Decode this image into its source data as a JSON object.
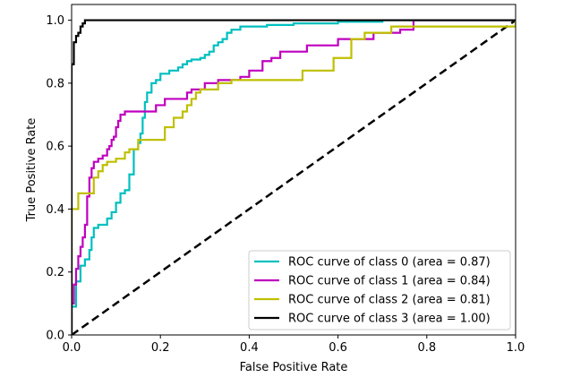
{
  "chart_data": {
    "type": "line",
    "title": "",
    "xlabel": "False Positive Rate",
    "ylabel": "True Positive Rate",
    "xlim": [
      0.0,
      1.0
    ],
    "ylim": [
      0.0,
      1.05
    ],
    "xticks": [
      "0.0",
      "0.2",
      "0.4",
      "0.6",
      "0.8",
      "1.0"
    ],
    "yticks": [
      "0.0",
      "0.2",
      "0.4",
      "0.6",
      "0.8",
      "1.0"
    ],
    "grid": false,
    "legend_position": "lower-right",
    "series": [
      {
        "name": "ROC curve of class 0 (area = 0.87)",
        "color": "#00bfbf",
        "points": [
          [
            0.0,
            0.0
          ],
          [
            0.0,
            0.09
          ],
          [
            0.01,
            0.09
          ],
          [
            0.01,
            0.17
          ],
          [
            0.02,
            0.17
          ],
          [
            0.02,
            0.22
          ],
          [
            0.03,
            0.22
          ],
          [
            0.03,
            0.24
          ],
          [
            0.04,
            0.24
          ],
          [
            0.04,
            0.27
          ],
          [
            0.045,
            0.27
          ],
          [
            0.045,
            0.31
          ],
          [
            0.05,
            0.31
          ],
          [
            0.05,
            0.34
          ],
          [
            0.06,
            0.34
          ],
          [
            0.06,
            0.35
          ],
          [
            0.08,
            0.35
          ],
          [
            0.08,
            0.37
          ],
          [
            0.09,
            0.37
          ],
          [
            0.09,
            0.39
          ],
          [
            0.1,
            0.39
          ],
          [
            0.1,
            0.42
          ],
          [
            0.11,
            0.42
          ],
          [
            0.11,
            0.45
          ],
          [
            0.12,
            0.45
          ],
          [
            0.12,
            0.46
          ],
          [
            0.13,
            0.46
          ],
          [
            0.13,
            0.51
          ],
          [
            0.14,
            0.51
          ],
          [
            0.14,
            0.59
          ],
          [
            0.15,
            0.59
          ],
          [
            0.15,
            0.61
          ],
          [
            0.155,
            0.61
          ],
          [
            0.155,
            0.64
          ],
          [
            0.16,
            0.64
          ],
          [
            0.16,
            0.69
          ],
          [
            0.165,
            0.69
          ],
          [
            0.165,
            0.74
          ],
          [
            0.17,
            0.74
          ],
          [
            0.17,
            0.77
          ],
          [
            0.18,
            0.77
          ],
          [
            0.18,
            0.8
          ],
          [
            0.19,
            0.8
          ],
          [
            0.19,
            0.81
          ],
          [
            0.2,
            0.81
          ],
          [
            0.2,
            0.83
          ],
          [
            0.22,
            0.83
          ],
          [
            0.22,
            0.84
          ],
          [
            0.24,
            0.84
          ],
          [
            0.24,
            0.85
          ],
          [
            0.25,
            0.85
          ],
          [
            0.25,
            0.86
          ],
          [
            0.26,
            0.86
          ],
          [
            0.26,
            0.87
          ],
          [
            0.27,
            0.87
          ],
          [
            0.27,
            0.875
          ],
          [
            0.29,
            0.875
          ],
          [
            0.29,
            0.88
          ],
          [
            0.3,
            0.88
          ],
          [
            0.3,
            0.89
          ],
          [
            0.31,
            0.89
          ],
          [
            0.31,
            0.9
          ],
          [
            0.32,
            0.9
          ],
          [
            0.32,
            0.92
          ],
          [
            0.33,
            0.92
          ],
          [
            0.33,
            0.93
          ],
          [
            0.34,
            0.93
          ],
          [
            0.34,
            0.94
          ],
          [
            0.35,
            0.94
          ],
          [
            0.35,
            0.96
          ],
          [
            0.36,
            0.96
          ],
          [
            0.36,
            0.97
          ],
          [
            0.38,
            0.97
          ],
          [
            0.38,
            0.98
          ],
          [
            0.44,
            0.98
          ],
          [
            0.44,
            0.985
          ],
          [
            0.5,
            0.985
          ],
          [
            0.5,
            0.99
          ],
          [
            0.6,
            0.99
          ],
          [
            0.6,
            0.995
          ],
          [
            0.7,
            0.995
          ],
          [
            0.7,
            1.0
          ],
          [
            1.0,
            1.0
          ]
        ]
      },
      {
        "name": "ROC curve of class 1 (area = 0.84)",
        "color": "#bf00bf",
        "points": [
          [
            0.0,
            0.0
          ],
          [
            0.0,
            0.1
          ],
          [
            0.005,
            0.1
          ],
          [
            0.005,
            0.16
          ],
          [
            0.01,
            0.16
          ],
          [
            0.01,
            0.21
          ],
          [
            0.015,
            0.21
          ],
          [
            0.015,
            0.25
          ],
          [
            0.02,
            0.25
          ],
          [
            0.02,
            0.28
          ],
          [
            0.025,
            0.28
          ],
          [
            0.025,
            0.31
          ],
          [
            0.03,
            0.31
          ],
          [
            0.03,
            0.35
          ],
          [
            0.035,
            0.35
          ],
          [
            0.035,
            0.44
          ],
          [
            0.04,
            0.44
          ],
          [
            0.04,
            0.5
          ],
          [
            0.045,
            0.5
          ],
          [
            0.045,
            0.53
          ],
          [
            0.05,
            0.53
          ],
          [
            0.05,
            0.55
          ],
          [
            0.06,
            0.55
          ],
          [
            0.06,
            0.56
          ],
          [
            0.07,
            0.56
          ],
          [
            0.07,
            0.57
          ],
          [
            0.08,
            0.57
          ],
          [
            0.08,
            0.59
          ],
          [
            0.085,
            0.59
          ],
          [
            0.085,
            0.6
          ],
          [
            0.09,
            0.6
          ],
          [
            0.09,
            0.62
          ],
          [
            0.095,
            0.62
          ],
          [
            0.095,
            0.63
          ],
          [
            0.1,
            0.63
          ],
          [
            0.1,
            0.66
          ],
          [
            0.105,
            0.66
          ],
          [
            0.105,
            0.68
          ],
          [
            0.11,
            0.68
          ],
          [
            0.11,
            0.7
          ],
          [
            0.12,
            0.7
          ],
          [
            0.12,
            0.71
          ],
          [
            0.19,
            0.71
          ],
          [
            0.19,
            0.73
          ],
          [
            0.21,
            0.73
          ],
          [
            0.21,
            0.75
          ],
          [
            0.26,
            0.75
          ],
          [
            0.26,
            0.77
          ],
          [
            0.27,
            0.77
          ],
          [
            0.27,
            0.78
          ],
          [
            0.3,
            0.78
          ],
          [
            0.3,
            0.8
          ],
          [
            0.33,
            0.8
          ],
          [
            0.33,
            0.81
          ],
          [
            0.38,
            0.81
          ],
          [
            0.38,
            0.82
          ],
          [
            0.4,
            0.82
          ],
          [
            0.4,
            0.84
          ],
          [
            0.43,
            0.84
          ],
          [
            0.43,
            0.87
          ],
          [
            0.45,
            0.87
          ],
          [
            0.45,
            0.88
          ],
          [
            0.47,
            0.88
          ],
          [
            0.47,
            0.9
          ],
          [
            0.53,
            0.9
          ],
          [
            0.53,
            0.92
          ],
          [
            0.6,
            0.92
          ],
          [
            0.6,
            0.94
          ],
          [
            0.68,
            0.94
          ],
          [
            0.68,
            0.96
          ],
          [
            0.74,
            0.96
          ],
          [
            0.74,
            0.97
          ],
          [
            0.77,
            0.97
          ],
          [
            0.77,
            1.0
          ],
          [
            1.0,
            1.0
          ]
        ]
      },
      {
        "name": "ROC curve of class 2 (area = 0.81)",
        "color": "#bfbf00",
        "points": [
          [
            0.0,
            0.0
          ],
          [
            0.0,
            0.4
          ],
          [
            0.015,
            0.4
          ],
          [
            0.015,
            0.45
          ],
          [
            0.05,
            0.45
          ],
          [
            0.05,
            0.5
          ],
          [
            0.06,
            0.5
          ],
          [
            0.06,
            0.52
          ],
          [
            0.07,
            0.52
          ],
          [
            0.07,
            0.54
          ],
          [
            0.08,
            0.54
          ],
          [
            0.08,
            0.55
          ],
          [
            0.1,
            0.55
          ],
          [
            0.1,
            0.56
          ],
          [
            0.12,
            0.56
          ],
          [
            0.12,
            0.58
          ],
          [
            0.13,
            0.58
          ],
          [
            0.13,
            0.59
          ],
          [
            0.15,
            0.59
          ],
          [
            0.15,
            0.62
          ],
          [
            0.21,
            0.62
          ],
          [
            0.21,
            0.66
          ],
          [
            0.23,
            0.66
          ],
          [
            0.23,
            0.69
          ],
          [
            0.25,
            0.69
          ],
          [
            0.25,
            0.71
          ],
          [
            0.26,
            0.71
          ],
          [
            0.26,
            0.73
          ],
          [
            0.27,
            0.73
          ],
          [
            0.27,
            0.75
          ],
          [
            0.28,
            0.75
          ],
          [
            0.28,
            0.77
          ],
          [
            0.29,
            0.77
          ],
          [
            0.29,
            0.78
          ],
          [
            0.33,
            0.78
          ],
          [
            0.33,
            0.8
          ],
          [
            0.36,
            0.8
          ],
          [
            0.36,
            0.81
          ],
          [
            0.52,
            0.81
          ],
          [
            0.52,
            0.84
          ],
          [
            0.59,
            0.84
          ],
          [
            0.59,
            0.88
          ],
          [
            0.63,
            0.88
          ],
          [
            0.63,
            0.94
          ],
          [
            0.66,
            0.94
          ],
          [
            0.66,
            0.96
          ],
          [
            0.72,
            0.96
          ],
          [
            0.72,
            0.98
          ],
          [
            1.0,
            0.98
          ],
          [
            1.0,
            1.0
          ]
        ]
      },
      {
        "name": "ROC curve of class 3 (area = 1.00)",
        "color": "#000000",
        "points": [
          [
            0.0,
            0.0
          ],
          [
            0.0,
            0.86
          ],
          [
            0.005,
            0.86
          ],
          [
            0.005,
            0.93
          ],
          [
            0.01,
            0.93
          ],
          [
            0.01,
            0.95
          ],
          [
            0.015,
            0.95
          ],
          [
            0.015,
            0.96
          ],
          [
            0.02,
            0.96
          ],
          [
            0.02,
            0.98
          ],
          [
            0.025,
            0.98
          ],
          [
            0.025,
            0.99
          ],
          [
            0.03,
            0.99
          ],
          [
            0.03,
            1.0
          ],
          [
            1.0,
            1.0
          ]
        ]
      }
    ],
    "reference_line": {
      "style": "dashed",
      "color": "#000000",
      "points": [
        [
          0.0,
          0.0
        ],
        [
          1.0,
          1.0
        ]
      ]
    }
  }
}
